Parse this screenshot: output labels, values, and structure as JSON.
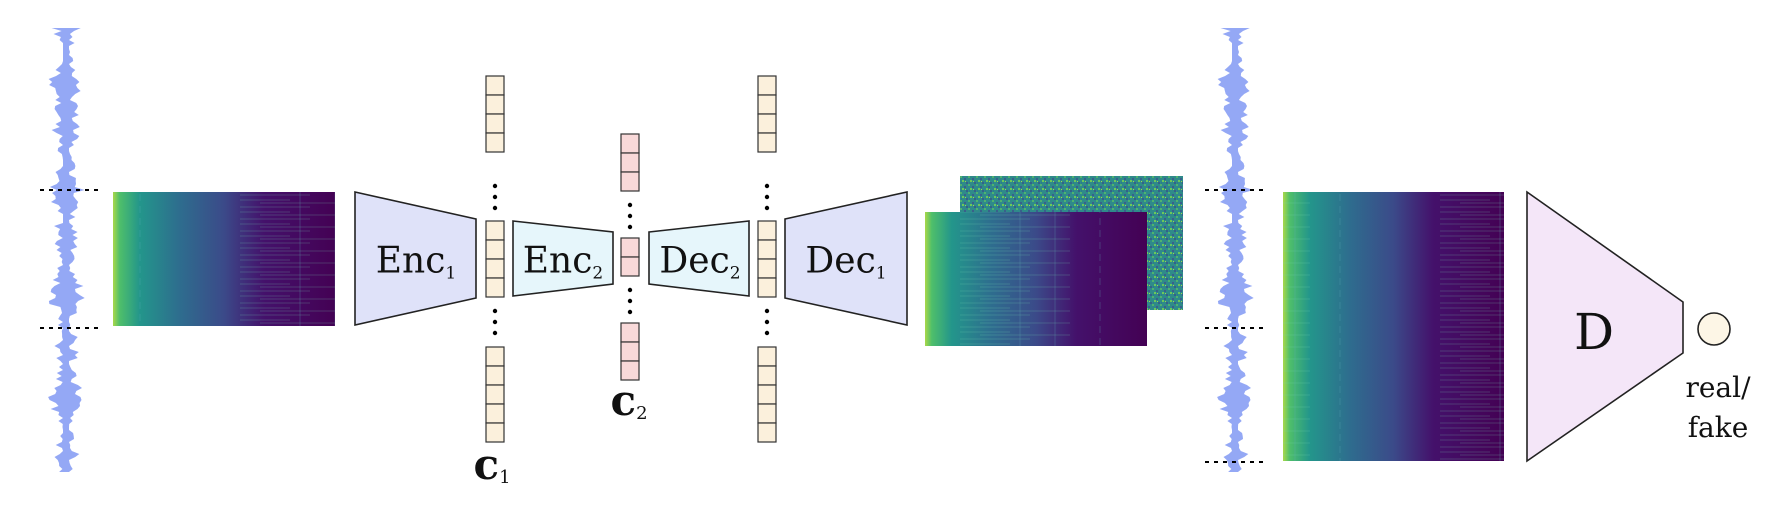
{
  "blocks": {
    "enc1": {
      "base": "Enc",
      "sub": "1"
    },
    "enc2": {
      "base": "Enc",
      "sub": "2"
    },
    "dec2": {
      "base": "Dec",
      "sub": "2"
    },
    "dec1": {
      "base": "Dec",
      "sub": "1"
    },
    "disc": {
      "base": "D"
    }
  },
  "codes": {
    "c1": {
      "base": "c",
      "sub": "1"
    },
    "c2": {
      "base": "c",
      "sub": "2"
    }
  },
  "output": {
    "line1": "real/",
    "line2": "fake"
  },
  "colors": {
    "waveform": "#94a8f5",
    "encoder_fill": "#dfe2f9",
    "inner_fill": "#e6f6fb",
    "disc_fill": "#f4e6f8",
    "code_c1_fill": "#fbf0dc",
    "code_c2_fill": "#f8d9d9",
    "output_node_fill": "#fdf6e6"
  }
}
